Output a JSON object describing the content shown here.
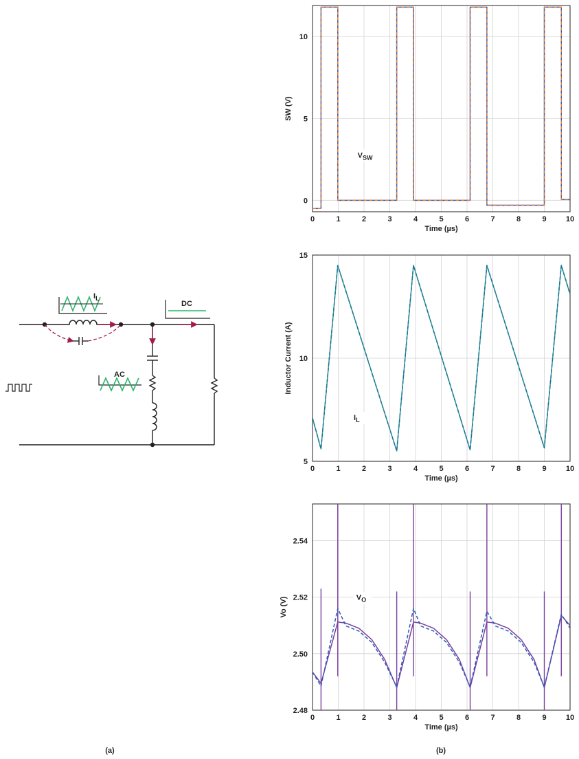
{
  "colors": {
    "blue": "#2a5db8",
    "orange": "#e07a3a",
    "teal": "#2d9c92",
    "tealDark": "#1f6f9c",
    "purple": "#7a3f9e",
    "crimson": "#a31c45",
    "green": "#2bb56a",
    "ink": "#231f20"
  },
  "circuit": {
    "il_label": "I",
    "il_sub": "L",
    "dc_label": "DC",
    "ac_label": "AC",
    "caption": "(a)"
  },
  "panel_b_caption": "(b)",
  "chart_data": [
    {
      "type": "line",
      "xlabel": "Time (µs)",
      "ylabel": "SW (V)",
      "xlim": [
        0,
        10
      ],
      "ylim": [
        -0.7,
        11.9
      ],
      "xticks": [
        "0",
        "1",
        "2",
        "3",
        "4",
        "5",
        "6",
        "7",
        "8",
        "9",
        "10"
      ],
      "yticks": [
        {
          "v": 0,
          "t": "0"
        },
        {
          "v": 5,
          "t": "5"
        },
        {
          "v": 10,
          "t": "10"
        }
      ],
      "annotation": {
        "text": "V",
        "sub": "SW"
      },
      "series": [
        {
          "style": "solid",
          "color": "blue",
          "x": [
            0,
            0.33,
            0.33,
            0.98,
            0.98,
            3.27,
            3.27,
            3.92,
            3.92,
            6.12,
            6.12,
            6.77,
            6.77,
            9.0,
            9.0,
            9.66,
            9.66,
            10
          ],
          "y": [
            -0.5,
            -0.5,
            11.8,
            11.8,
            0,
            0,
            11.8,
            11.8,
            0,
            0,
            11.8,
            11.8,
            -0.3,
            -0.3,
            11.8,
            11.8,
            0.05,
            0.05
          ]
        },
        {
          "style": "dashed",
          "color": "orange",
          "x": [
            0,
            0.33,
            0.33,
            0.98,
            0.98,
            3.27,
            3.27,
            3.92,
            3.92,
            6.12,
            6.12,
            6.77,
            6.77,
            9.0,
            9.0,
            9.66,
            9.66,
            10
          ],
          "y": [
            -0.5,
            -0.5,
            11.8,
            11.8,
            0,
            0,
            11.8,
            11.8,
            0,
            0,
            11.8,
            11.8,
            -0.3,
            -0.3,
            11.8,
            11.8,
            0.05,
            0.05
          ]
        }
      ]
    },
    {
      "type": "line",
      "xlabel": "Time (µs)",
      "ylabel": "Inductor Current (A)",
      "xlim": [
        0,
        10
      ],
      "ylim": [
        5,
        15
      ],
      "xticks": [
        "0",
        "1",
        "2",
        "3",
        "4",
        "5",
        "6",
        "7",
        "8",
        "9",
        "10"
      ],
      "yticks": [
        {
          "v": 5,
          "t": "5"
        },
        {
          "v": 10,
          "t": "10"
        },
        {
          "v": 15,
          "t": "15"
        }
      ],
      "annotation": {
        "text": "I",
        "sub": "L"
      },
      "series": [
        {
          "style": "solid",
          "color": "teal",
          "x": [
            0,
            0.33,
            0.98,
            3.27,
            3.92,
            6.12,
            6.77,
            9.0,
            9.66,
            10
          ],
          "y": [
            7.1,
            5.6,
            14.5,
            5.5,
            14.5,
            5.55,
            14.5,
            5.65,
            14.5,
            13.1
          ]
        },
        {
          "style": "dashed",
          "color": "tealDark",
          "x": [
            0,
            0.33,
            0.98,
            3.27,
            3.92,
            6.12,
            6.77,
            9.0,
            9.66,
            10
          ],
          "y": [
            7.1,
            5.6,
            14.5,
            5.5,
            14.5,
            5.55,
            14.5,
            5.65,
            14.5,
            13.1
          ]
        }
      ]
    },
    {
      "type": "line",
      "xlabel": "Time (µs)",
      "ylabel": "Vo (V)",
      "xlim": [
        0,
        10
      ],
      "ylim": [
        2.48,
        2.553
      ],
      "xticks": [
        "0",
        "1",
        "2",
        "3",
        "4",
        "5",
        "6",
        "7",
        "8",
        "9",
        "10"
      ],
      "yticks": [
        {
          "v": 2.48,
          "t": "2.48"
        },
        {
          "v": 2.5,
          "t": "2.50"
        },
        {
          "v": 2.52,
          "t": "2.52"
        },
        {
          "v": 2.54,
          "t": "2.54"
        }
      ],
      "annotation": {
        "text": "V",
        "sub": "O"
      },
      "spikes": [
        {
          "x": 0.33,
          "y1": 2.48,
          "y2": 2.523
        },
        {
          "x": 0.98,
          "y1": 2.492,
          "y2": 2.553
        },
        {
          "x": 3.27,
          "y1": 2.48,
          "y2": 2.522
        },
        {
          "x": 3.92,
          "y1": 2.492,
          "y2": 2.553
        },
        {
          "x": 6.12,
          "y1": 2.48,
          "y2": 2.522
        },
        {
          "x": 6.77,
          "y1": 2.492,
          "y2": 2.553
        },
        {
          "x": 9.0,
          "y1": 2.48,
          "y2": 2.522
        },
        {
          "x": 9.66,
          "y1": 2.492,
          "y2": 2.553
        }
      ],
      "series": [
        {
          "style": "solid",
          "color": "purple",
          "x": [
            0,
            0.33,
            0.98,
            1.3,
            1.8,
            2.3,
            2.8,
            3.27,
            3.92,
            4.2,
            4.7,
            5.2,
            5.7,
            6.12,
            6.77,
            7.1,
            7.6,
            8.1,
            8.6,
            9.0,
            9.66,
            10
          ],
          "y": [
            2.4935,
            2.4895,
            2.5112,
            2.5108,
            2.509,
            2.505,
            2.498,
            2.488,
            2.5112,
            2.5108,
            2.509,
            2.505,
            2.498,
            2.488,
            2.5112,
            2.5108,
            2.509,
            2.505,
            2.498,
            2.488,
            2.5135,
            2.51
          ]
        },
        {
          "style": "dashed",
          "color": "blue",
          "x": [
            0,
            0.33,
            0.98,
            1.3,
            1.8,
            2.3,
            2.8,
            3.27,
            3.92,
            4.2,
            4.7,
            5.2,
            5.7,
            6.12,
            6.77,
            7.1,
            7.6,
            8.1,
            8.6,
            9.0,
            9.66,
            10
          ],
          "y": [
            2.4935,
            2.4885,
            2.516,
            2.5098,
            2.508,
            2.504,
            2.497,
            2.4882,
            2.516,
            2.5098,
            2.508,
            2.504,
            2.497,
            2.4882,
            2.515,
            2.5098,
            2.508,
            2.504,
            2.497,
            2.4882,
            2.514,
            2.509
          ]
        }
      ]
    }
  ]
}
